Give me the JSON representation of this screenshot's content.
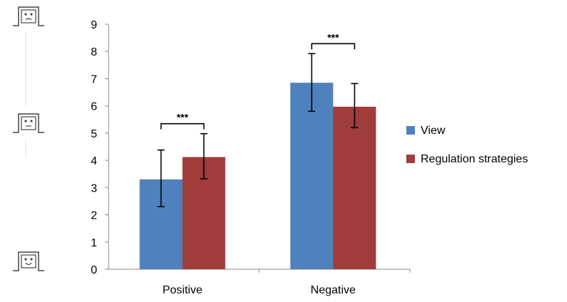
{
  "chart_data": {
    "type": "bar",
    "title": "",
    "xlabel": "",
    "ylabel": "",
    "ylim": [
      0,
      9
    ],
    "yticks": [
      0,
      1,
      2,
      3,
      4,
      5,
      6,
      7,
      8,
      9
    ],
    "categories": [
      "Positive",
      "Negative"
    ],
    "series": [
      {
        "name": "View",
        "color": "#4f81bd",
        "values": [
          3.3,
          6.85
        ],
        "error_low": [
          2.3,
          5.8
        ],
        "error_high": [
          4.38,
          7.92
        ]
      },
      {
        "name": "Regulation strategies",
        "color": "#a03c3a",
        "values": [
          4.12,
          5.97
        ],
        "error_low": [
          3.32,
          5.2
        ],
        "error_high": [
          4.98,
          6.82
        ]
      }
    ],
    "significance": [
      {
        "category": "Positive",
        "label": "***"
      },
      {
        "category": "Negative",
        "label": "***"
      }
    ],
    "legend_position": "right",
    "grid": false,
    "axis_icons": [
      {
        "name": "sad-face-icon",
        "meaning": "negative"
      },
      {
        "name": "neutral-face-icon",
        "meaning": "neutral"
      },
      {
        "name": "happy-face-icon",
        "meaning": "positive"
      }
    ]
  }
}
